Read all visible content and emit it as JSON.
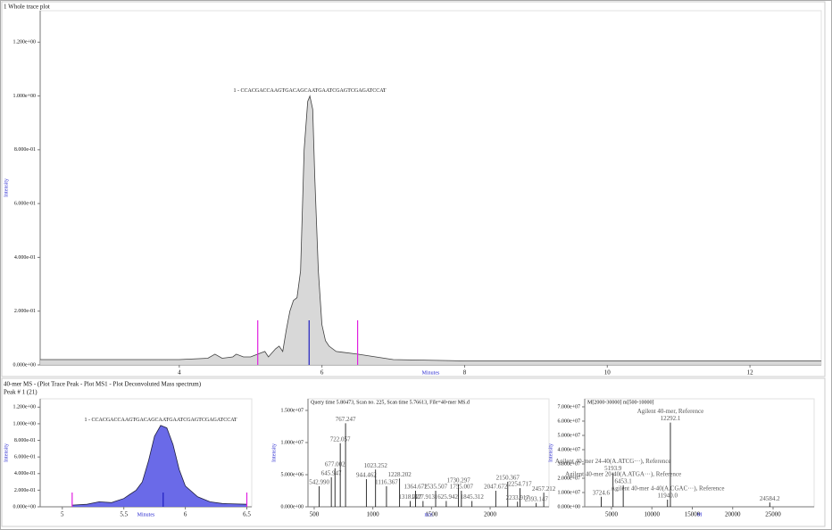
{
  "section_title": "40-mer MS - (Plot Trace Peak - Plot MS1 - Plot Deconvoluted Mass spectrum)",
  "chart_data": [
    {
      "type": "area",
      "title": "1 Whole trace plot",
      "annotation": "1 - CCACGACCAAGTGACAGCAATGAATCGAGTCGAGATCCAT",
      "x_label": "Minutes",
      "y_label": "Intensity",
      "color": "#404040",
      "fill": "#d4d4d4",
      "xlim": [
        2.05,
        13
      ],
      "ylim": [
        0,
        1.317
      ],
      "xticks": [
        4,
        6,
        8,
        10,
        12
      ],
      "yticks": [
        {
          "value": 0,
          "label": "0.000e+00"
        },
        {
          "value": 0.2,
          "label": "2.000e-01"
        },
        {
          "value": 0.4,
          "label": "4.000e-01"
        },
        {
          "value": 0.6,
          "label": "6.000e-01"
        },
        {
          "value": 0.8,
          "label": "8.000e-01"
        },
        {
          "value": 1.0,
          "label": "1.000e+00"
        },
        {
          "value": 1.2,
          "label": "1.200e+00"
        }
      ],
      "x": [
        2.05,
        3,
        4,
        4.4,
        4.5,
        4.6,
        4.75,
        4.8,
        4.9,
        5.0,
        5.1,
        5.2,
        5.25,
        5.35,
        5.4,
        5.45,
        5.5,
        5.55,
        5.6,
        5.65,
        5.7,
        5.75,
        5.8,
        5.83,
        5.87,
        5.9,
        5.95,
        6.0,
        6.05,
        6.1,
        6.2,
        6.5,
        7,
        8,
        9,
        10,
        13
      ],
      "values": [
        0.02,
        0.02,
        0.02,
        0.025,
        0.04,
        0.025,
        0.03,
        0.04,
        0.03,
        0.03,
        0.04,
        0.05,
        0.03,
        0.06,
        0.07,
        0.05,
        0.13,
        0.2,
        0.24,
        0.25,
        0.35,
        0.8,
        0.98,
        1.0,
        0.95,
        0.7,
        0.35,
        0.15,
        0.09,
        0.07,
        0.05,
        0.04,
        0.02,
        0.015,
        0.015,
        0.015,
        0.015
      ],
      "markers": [
        {
          "x": 5.1,
          "color": "#e020e0"
        },
        {
          "x": 5.82,
          "color": "#2020c0"
        },
        {
          "x": 6.5,
          "color": "#e020e0"
        }
      ]
    },
    {
      "type": "area",
      "title": "Peak # 1 (21)",
      "annotation": "1 - CCACGACCAAGTGACAGCAATGAATCGAGTCGAGATCCAT",
      "x_label": "Minutes",
      "y_label": "Intensity",
      "color": "#202040",
      "fill": "#5a5ae6",
      "xlim": [
        4.82,
        6.54
      ],
      "ylim": [
        0,
        1.3
      ],
      "xticks": [
        5,
        5.5,
        6,
        6.5
      ],
      "yticks": [
        {
          "value": 0,
          "label": "0.000e+00"
        },
        {
          "value": 0.2,
          "label": "2.000e-01"
        },
        {
          "value": 0.4,
          "label": "4.000e-01"
        },
        {
          "value": 0.6,
          "label": "6.000e-01"
        },
        {
          "value": 0.8,
          "label": "8.000e-01"
        },
        {
          "value": 1.0,
          "label": "1.000e+00"
        },
        {
          "value": 1.2,
          "label": "1.200e+00"
        }
      ],
      "x": [
        5.08,
        5.2,
        5.3,
        5.4,
        5.5,
        5.55,
        5.6,
        5.65,
        5.7,
        5.75,
        5.8,
        5.85,
        5.9,
        5.95,
        6.0,
        6.1,
        6.2,
        6.3,
        6.5
      ],
      "values": [
        0.02,
        0.03,
        0.06,
        0.05,
        0.1,
        0.15,
        0.2,
        0.3,
        0.55,
        0.85,
        0.98,
        0.95,
        0.75,
        0.45,
        0.25,
        0.12,
        0.06,
        0.04,
        0.03
      ],
      "markers": [
        {
          "x": 5.08,
          "color": "#e020e0"
        },
        {
          "x": 5.82,
          "color": "#2020c0"
        },
        {
          "x": 6.5,
          "color": "#e020e0"
        }
      ]
    },
    {
      "type": "stick",
      "subtitle": "Query time 5.80473, Scan no. 225, Scan time 5.76613, File=40-mer MS.d",
      "x_label": "m/z",
      "y_label": "Intensity",
      "color": "#000000",
      "xlim": [
        447,
        2502
      ],
      "ylim": [
        0,
        16800000
      ],
      "xticks": [
        500,
        1000,
        1500,
        2000
      ],
      "yticks": [
        {
          "value": 0,
          "label": "0.000e+00"
        },
        {
          "value": 5000000,
          "label": "5.000e+06"
        },
        {
          "value": 10000000,
          "label": "1.000e+07"
        },
        {
          "value": 15000000,
          "label": "1.500e+07"
        }
      ],
      "x": [
        542.99,
        645.947,
        677.002,
        722.057,
        767.247,
        944.462,
        1023.252,
        1116.367,
        1228.202,
        1318.227,
        1364.672,
        1427.913,
        1535.507,
        1625.942,
        1730.297,
        1755.007,
        1845.312,
        2047.672,
        2150.367,
        2233.917,
        2254.717,
        2393.147,
        2457.212
      ],
      "values": [
        3200000,
        4600000,
        6000000,
        9900000,
        13000000,
        4300000,
        5800000,
        3200000,
        4400000,
        900000,
        2500000,
        900000,
        2500000,
        900000,
        3500000,
        2500000,
        900000,
        2500000,
        3900000,
        800000,
        2900000,
        600000,
        2200000
      ],
      "peak_labels": [
        "542.990",
        "645.947",
        "677.002",
        "722.057",
        "767.247",
        "944.462",
        "1023.252",
        "1116.367",
        "1228.202",
        "1318.227",
        "1364.672",
        "1427.913",
        "1535.507",
        "1625.942",
        "1730.297",
        "1755.007",
        "1845.312",
        "2047.672",
        "2150.367",
        "2233.917",
        "2254.717",
        "2393.147",
        "2457.212"
      ]
    },
    {
      "type": "stick",
      "subtitle": "M[2000-30000] m[500-10000]",
      "x_label": "M",
      "y_label": "Intensity",
      "color": "#000000",
      "xlim": [
        1690,
        30080
      ],
      "ylim": [
        0,
        75600000
      ],
      "xticks": [
        5000,
        10000,
        15000,
        20000,
        25000
      ],
      "yticks": [
        {
          "value": 0,
          "label": "0.000e+00"
        },
        {
          "value": 10000000,
          "label": "1.000e+07"
        },
        {
          "value": 20000000,
          "label": "2.000e+07"
        },
        {
          "value": 30000000,
          "label": "3.000e+07"
        },
        {
          "value": 40000000,
          "label": "4.000e+07"
        },
        {
          "value": 50000000,
          "label": "5.000e+07"
        },
        {
          "value": 60000000,
          "label": "6.000e+07"
        },
        {
          "value": 70000000,
          "label": "7.000e+07"
        }
      ],
      "x": [
        3724.6,
        5193.9,
        6453.1,
        11940.0,
        12292.1,
        24584.2
      ],
      "values": [
        7000000,
        24000000,
        15000000,
        5000000,
        59000000,
        3000000
      ],
      "peak_labels": [
        "3724.6",
        "5193.9",
        "6453.1",
        "11940.0",
        "12292.1",
        "24584.2"
      ],
      "peak_names": [
        null,
        "Agilent 40-mer 24-40(A.ATCG···), Reference",
        "Agilent 40-mer 20-40(A.ATGA···), Reference",
        "Agilent 40-mer 4-40(A.CGAC···), Reference",
        "Agilent 40-mer, Reference",
        null
      ]
    }
  ]
}
